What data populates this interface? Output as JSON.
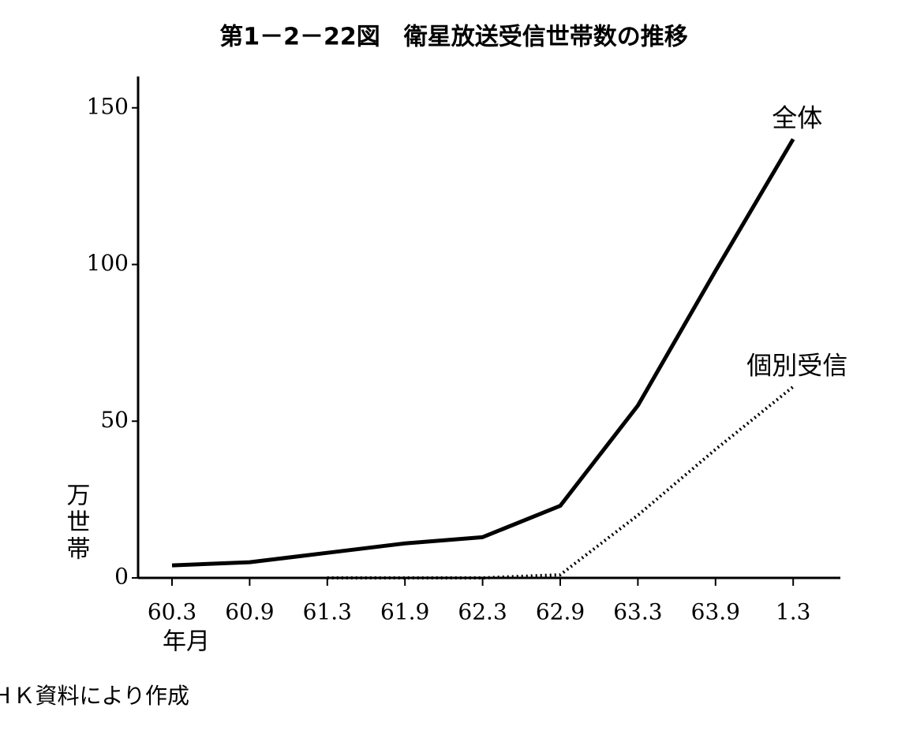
{
  "chart_data": {
    "type": "line",
    "title": "第1－2－22図　衛星放送受信世帯数の推移",
    "y_label": "万世帯",
    "x_label": "年月",
    "source": "ＮＨＫ資料により作成",
    "categories": [
      "60.3",
      "60.9",
      "61.3",
      "61.9",
      "62.3",
      "62.9",
      "63.3",
      "63.9",
      "1.3"
    ],
    "series": [
      {
        "name": "全体",
        "color": "#000000",
        "dash": "solid",
        "values": [
          4,
          5,
          8,
          11,
          13,
          23,
          55,
          98,
          140
        ]
      },
      {
        "name": "個別受信",
        "color": "#000000",
        "dash": "dotted",
        "values": [
          null,
          null,
          0,
          0,
          0,
          1,
          20,
          41,
          61
        ]
      }
    ],
    "ylim": [
      0,
      160
    ],
    "yticks": [
      0,
      50,
      100,
      150
    ]
  }
}
